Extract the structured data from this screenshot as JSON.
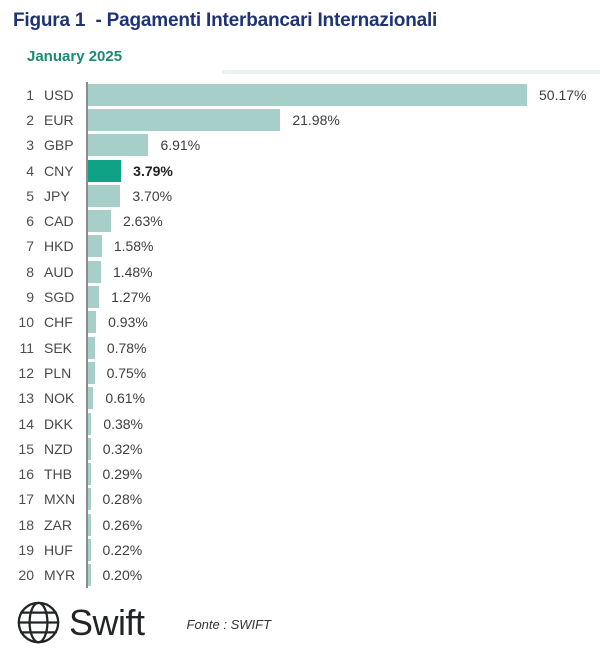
{
  "header": {
    "title": "Figura 1  - Pagamenti Interbancari Internazionali",
    "subtitle": "January 2025"
  },
  "chart_data": {
    "type": "bar",
    "orientation": "horizontal",
    "title": "Figura 1 - Pagamenti Interbancari Internazionali",
    "subtitle": "January 2025",
    "unit": "%",
    "xlim": [
      0,
      55
    ],
    "grid": false,
    "legend": false,
    "highlight_category": "CNY",
    "ranks": [
      1,
      2,
      3,
      4,
      5,
      6,
      7,
      8,
      9,
      10,
      11,
      12,
      13,
      14,
      15,
      16,
      17,
      18,
      19,
      20
    ],
    "categories": [
      "USD",
      "EUR",
      "GBP",
      "CNY",
      "JPY",
      "CAD",
      "HKD",
      "AUD",
      "SGD",
      "CHF",
      "SEK",
      "PLN",
      "NOK",
      "DKK",
      "NZD",
      "THB",
      "MXN",
      "ZAR",
      "HUF",
      "MYR"
    ],
    "values": [
      50.17,
      21.98,
      6.91,
      3.79,
      3.7,
      2.63,
      1.58,
      1.48,
      1.27,
      0.93,
      0.78,
      0.75,
      0.61,
      0.38,
      0.32,
      0.29,
      0.28,
      0.26,
      0.22,
      0.2
    ],
    "labels": [
      "50.17%",
      "21.98%",
      "6.91%",
      "3.79%",
      "3.70%",
      "2.63%",
      "1.58%",
      "1.48%",
      "1.27%",
      "0.93%",
      "0.78%",
      "0.75%",
      "0.61%",
      "0.38%",
      "0.32%",
      "0.29%",
      "0.28%",
      "0.26%",
      "0.22%",
      "0.20%"
    ]
  },
  "colors": {
    "title": "#1f3474",
    "subtitle": "#1b8a70",
    "bar": "#a6cfca",
    "bar_highlight": "#0fa287",
    "axis": "#8c8c8c",
    "label_text": "#484848",
    "value_text": "#3d3d3d"
  },
  "footer": {
    "logo_text": "Swift",
    "logo_icon": "globe-icon",
    "source": "Fonte : SWIFT"
  }
}
